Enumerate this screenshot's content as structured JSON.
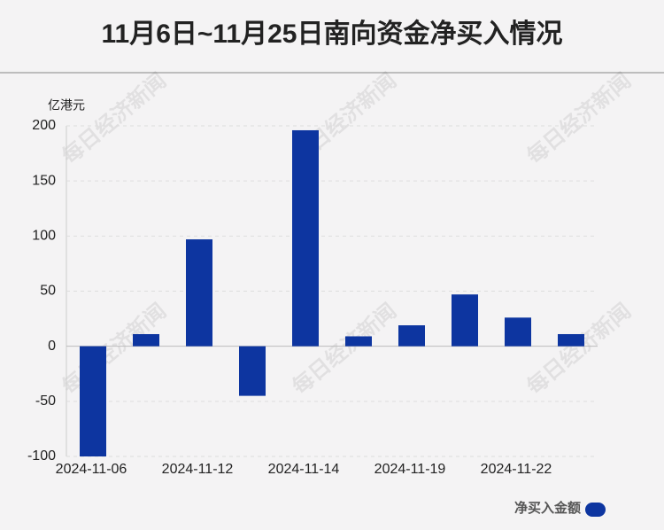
{
  "chart_data": {
    "type": "bar",
    "title": "11月6日~11月25日南向资金净买入情况",
    "y_unit": "亿港元",
    "watermark": "每日经济新闻",
    "categories": [
      "2024-11-06",
      null,
      "2024-11-12",
      null,
      "2024-11-14",
      null,
      "2024-11-19",
      null,
      "2024-11-22",
      null
    ],
    "series": [
      {
        "name": "净买入金额",
        "color": "#0d35a0",
        "values": [
          -100,
          11,
          97,
          -45,
          196,
          9,
          19,
          47,
          26,
          11
        ]
      }
    ],
    "ylim": [
      -100,
      200
    ],
    "yticks": [
      -100,
      -50,
      0,
      50,
      100,
      150,
      200
    ],
    "grid": true,
    "legend": "bottom-right"
  }
}
